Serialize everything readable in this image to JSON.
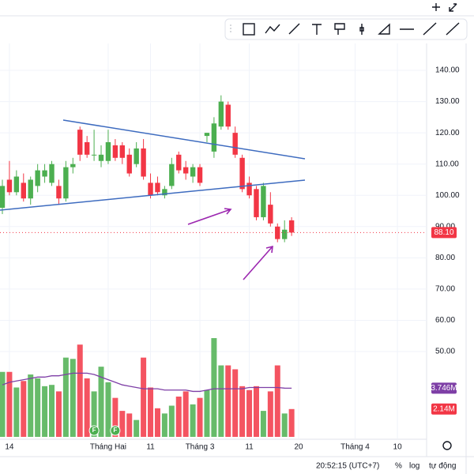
{
  "chart_data": {
    "type": "candlestick",
    "open": [
      96,
      105,
      101,
      104,
      99,
      103,
      106,
      104,
      103,
      99,
      109,
      121,
      117,
      113,
      111,
      111,
      116,
      116,
      113,
      110,
      115,
      104,
      104,
      100,
      103,
      113,
      109,
      106,
      109,
      119,
      114,
      122,
      129,
      120,
      112,
      104,
      102,
      93,
      97,
      90,
      86,
      92
    ],
    "high": [
      105,
      111,
      108,
      107,
      106,
      110,
      110,
      111,
      105,
      111,
      112,
      122,
      119,
      121,
      116,
      121,
      118,
      117,
      115,
      117,
      118,
      107,
      106,
      103,
      112,
      114,
      111,
      110,
      110,
      120,
      125,
      132,
      130,
      122,
      113,
      106,
      103,
      104,
      101,
      91,
      92,
      93
    ],
    "low": [
      94,
      100,
      100,
      98,
      97,
      101,
      104,
      103,
      97,
      98,
      107,
      111,
      112,
      111,
      109,
      110,
      111,
      110,
      106,
      109,
      105,
      99,
      100,
      99,
      102,
      107,
      105,
      104,
      103,
      117,
      112,
      121,
      121,
      112,
      101,
      99,
      92,
      92,
      90,
      85,
      85,
      87
    ],
    "close": [
      103,
      101,
      106,
      99,
      105,
      108,
      108,
      110,
      99,
      109,
      110,
      113,
      113,
      113,
      113,
      117,
      112,
      112,
      107,
      115,
      106,
      100,
      101,
      102,
      110,
      108,
      107,
      109,
      104,
      120,
      123,
      130,
      122,
      113,
      102,
      100,
      93,
      103,
      91,
      86,
      89,
      88.1
    ],
    "ylim": [
      22.2,
      148.6
    ],
    "yticks": [
      {
        "value": 50,
        "label": "50.00"
      },
      {
        "value": 60,
        "label": "60.00"
      },
      {
        "value": 70,
        "label": "70.00"
      },
      {
        "value": 80,
        "label": "80.00"
      },
      {
        "value": 90,
        "label": "90.00"
      },
      {
        "value": 100,
        "label": "100.00"
      },
      {
        "value": 110,
        "label": "110.00"
      },
      {
        "value": 120,
        "label": "120.00"
      },
      {
        "value": 130,
        "label": "130.00"
      },
      {
        "value": 140,
        "label": "140.00"
      }
    ],
    "xticks": [
      {
        "value": 1,
        "label": "14"
      },
      {
        "value": 15,
        "label": "Tháng Hai"
      },
      {
        "value": 21,
        "label": "11"
      },
      {
        "value": 28,
        "label": "Tháng 3"
      },
      {
        "value": 35,
        "label": "11"
      },
      {
        "value": 42,
        "label": "20"
      },
      {
        "value": 50,
        "label": "Tháng 4"
      },
      {
        "value": 56,
        "label": "10"
      }
    ],
    "up_color": "#4caf50",
    "down_color": "#f23645",
    "grid": true,
    "price_tag": {
      "value": 88.1,
      "label": "88.10"
    },
    "volume": {
      "values": [
        5.0,
        5.0,
        3.8,
        4.3,
        4.8,
        4.5,
        3.9,
        4.0,
        3.5,
        6.1,
        6.0,
        7.1,
        4.5,
        3.5,
        5.4,
        4.2,
        3.0,
        2.0,
        1.8,
        1.3,
        6.1,
        3.8,
        2.2,
        1.8,
        2.4,
        3.1,
        3.5,
        2.5,
        3.0,
        3.6,
        7.6,
        5.5,
        5.5,
        5.2,
        3.9,
        3.6,
        3.9,
        2.0,
        3.5,
        5.5,
        1.8,
        2.14
      ],
      "ma": [
        4.0,
        4.2,
        4.3,
        4.4,
        4.5,
        4.6,
        4.6,
        4.7,
        4.7,
        4.8,
        4.9,
        4.9,
        4.9,
        4.8,
        4.6,
        4.4,
        4.2,
        4.0,
        3.9,
        3.8,
        3.7,
        3.7,
        3.7,
        3.6,
        3.6,
        3.6,
        3.6,
        3.5,
        3.5,
        3.6,
        3.7,
        3.7,
        3.7,
        3.7,
        3.7,
        3.8,
        3.8,
        3.8,
        3.8,
        3.8,
        3.75,
        3.746
      ],
      "ylim": [
        0,
        8
      ],
      "ma_color": "#7e3fa6",
      "tag": {
        "value": 2.14,
        "label": "2.14M"
      },
      "ma_tag": {
        "value": 3.746,
        "label": "3.746M"
      }
    },
    "events": [
      {
        "index": 13,
        "label": "F"
      },
      {
        "index": 16,
        "label": "F"
      }
    ]
  },
  "status_bar": {
    "time": "20:52:15 (UTC+7)",
    "percent": "%",
    "log": "log",
    "auto": "tự động"
  }
}
